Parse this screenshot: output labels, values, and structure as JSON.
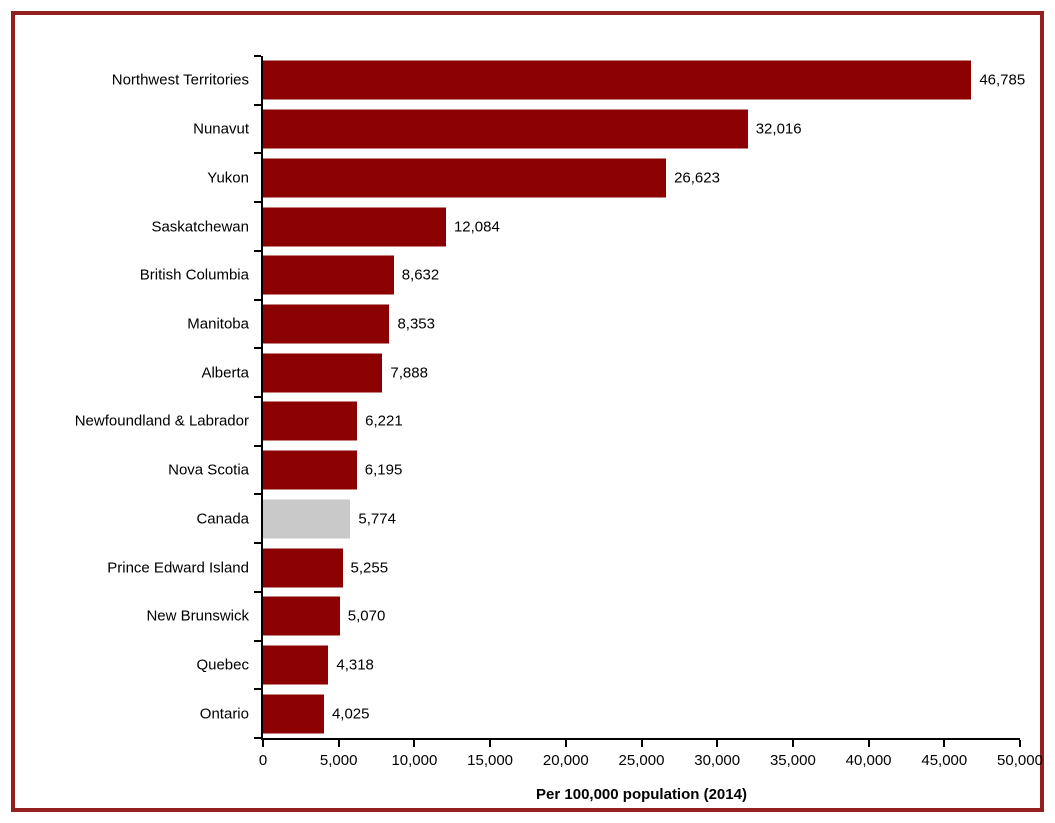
{
  "chart_data": {
    "type": "bar",
    "orientation": "horizontal",
    "title": "",
    "xlabel": "Per 100,000 population (2014)",
    "xlim": [
      0,
      50000
    ],
    "xticks": [
      0,
      5000,
      10000,
      15000,
      20000,
      25000,
      30000,
      35000,
      40000,
      45000,
      50000
    ],
    "xtick_labels": [
      "0",
      "5,000",
      "10,000",
      "15,000",
      "20,000",
      "25,000",
      "30,000",
      "35,000",
      "40,000",
      "45,000",
      "50,000"
    ],
    "categories": [
      "Northwest Territories",
      "Nunavut",
      "Yukon",
      "Saskatchewan",
      "British Columbia",
      "Manitoba",
      "Alberta",
      "Newfoundland & Labrador",
      "Nova Scotia",
      "Canada",
      "Prince Edward Island",
      "New Brunswick",
      "Quebec",
      "Ontario"
    ],
    "values": [
      46785,
      32016,
      26623,
      12084,
      8632,
      8353,
      7888,
      6221,
      6195,
      5774,
      5255,
      5070,
      4318,
      4025
    ],
    "value_labels": [
      "46,785",
      "32,016",
      "26,623",
      "12,084",
      "8,632",
      "8,353",
      "7,888",
      "6,221",
      "6,195",
      "5,774",
      "5,255",
      "5,070",
      "4,318",
      "4,025"
    ],
    "grid": false,
    "legend": false,
    "highlighted_category": "Canada",
    "colors": {
      "bar": "#8B0000",
      "highlight_bar": "#C9C9C9",
      "axis": "#000000",
      "frame_border": "#941F1F",
      "text": "#000000"
    }
  }
}
